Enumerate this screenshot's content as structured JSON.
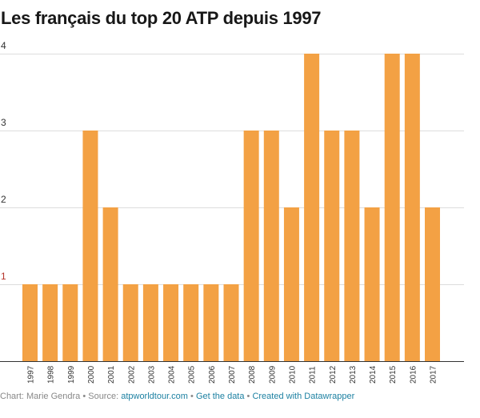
{
  "chart_data": {
    "type": "bar",
    "title": "Les français du top 20 ATP depuis 1997",
    "xlabel": "",
    "ylabel": "",
    "ylim": [
      0,
      4
    ],
    "yticks": [
      "1",
      "2",
      "3",
      "4"
    ],
    "grid": true,
    "categories": [
      "1997",
      "1998",
      "1999",
      "2000",
      "2001",
      "2002",
      "2003",
      "2004",
      "2005",
      "2006",
      "2007",
      "2008",
      "2009",
      "2010",
      "2011",
      "2012",
      "2013",
      "2014",
      "2015",
      "2016",
      "2017"
    ],
    "values": [
      1,
      1,
      1,
      3,
      2,
      1,
      1,
      1,
      1,
      1,
      1,
      3,
      3,
      2,
      4,
      3,
      3,
      2,
      4,
      4,
      2
    ],
    "bar_color": "#f3a144",
    "highlight_tick_color": "#b5332a"
  },
  "footer": {
    "chart_by": "Chart: Marie Gendra",
    "sep": " • ",
    "source_label": "Source: ",
    "source_link": "atpworldtour.com",
    "get_data": "Get the data",
    "created_with": "Created with Datawrapper"
  }
}
